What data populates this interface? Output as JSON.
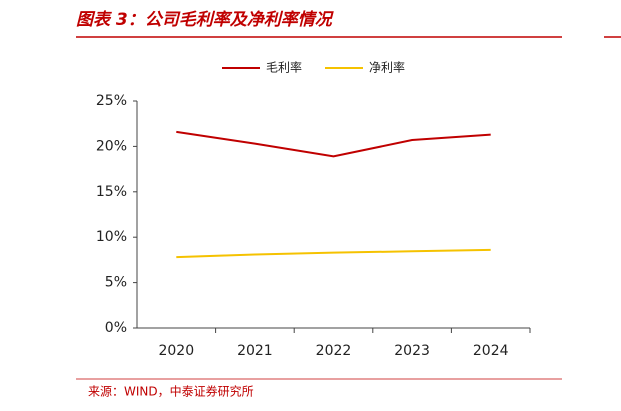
{
  "chart_data": {
    "type": "line",
    "title": "图表 3：公司毛利率及净利率情况",
    "source": "来源：WIND，中泰证券研究所",
    "categories": [
      "2020",
      "2021",
      "2022",
      "2023",
      "2024"
    ],
    "series": [
      {
        "name": "毛利率",
        "color": "#c00000",
        "values": [
          21.6,
          20.3,
          18.9,
          20.7,
          21.3
        ]
      },
      {
        "name": "净利率",
        "color": "#f5c200",
        "values": [
          7.8,
          8.1,
          8.3,
          8.45,
          8.6
        ]
      }
    ],
    "ylim": [
      0,
      25
    ],
    "yticks": [
      {
        "value": 0,
        "label": "0%"
      },
      {
        "value": 5,
        "label": "5%"
      },
      {
        "value": 10,
        "label": "10%"
      },
      {
        "value": 15,
        "label": "15%"
      },
      {
        "value": 20,
        "label": "20%"
      },
      {
        "value": 25,
        "label": "25%"
      }
    ],
    "legend": "top"
  }
}
